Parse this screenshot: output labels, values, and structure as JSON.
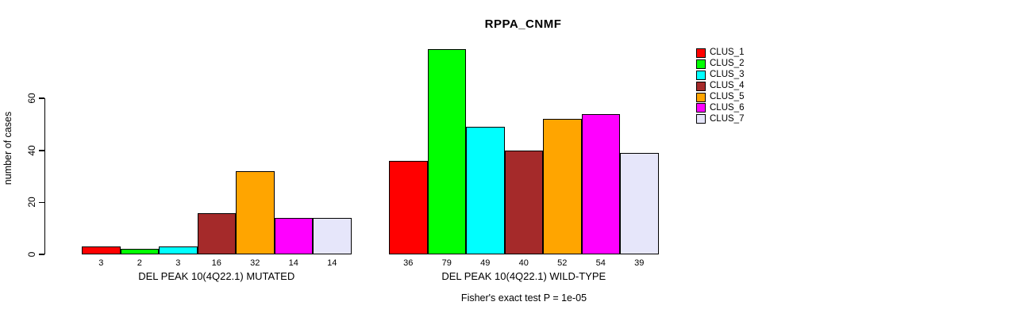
{
  "chart_data": {
    "type": "bar",
    "title": "RPPA_CNMF",
    "ylabel": "number of cases",
    "yticks": [
      0,
      20,
      40,
      60
    ],
    "ylim": [
      0,
      79
    ],
    "grid": false,
    "legend_position": "right",
    "legend": [
      {
        "label": "CLUS_1",
        "color": "#ff0000"
      },
      {
        "label": "CLUS_2",
        "color": "#00ff00"
      },
      {
        "label": "CLUS_3",
        "color": "#00ffff"
      },
      {
        "label": "CLUS_4",
        "color": "#a52a2a"
      },
      {
        "label": "CLUS_5",
        "color": "#ffa500"
      },
      {
        "label": "CLUS_6",
        "color": "#ff00ff"
      },
      {
        "label": "CLUS_7",
        "color": "#e6e6fa"
      }
    ],
    "groups": [
      {
        "label": "DEL PEAK 10(4Q22.1) MUTATED",
        "bar_labels": [
          "3",
          "2",
          "3",
          "16",
          "32",
          "14",
          "14"
        ],
        "values": [
          3,
          2,
          3,
          16,
          32,
          14,
          14
        ]
      },
      {
        "label": "DEL PEAK 10(4Q22.1) WILD-TYPE",
        "bar_labels": [
          "36",
          "79",
          "49",
          "40",
          "52",
          "54",
          "39"
        ],
        "values": [
          36,
          79,
          49,
          40,
          52,
          54,
          39
        ]
      }
    ],
    "annotation": "Fisher's exact test P = 1e-05"
  }
}
